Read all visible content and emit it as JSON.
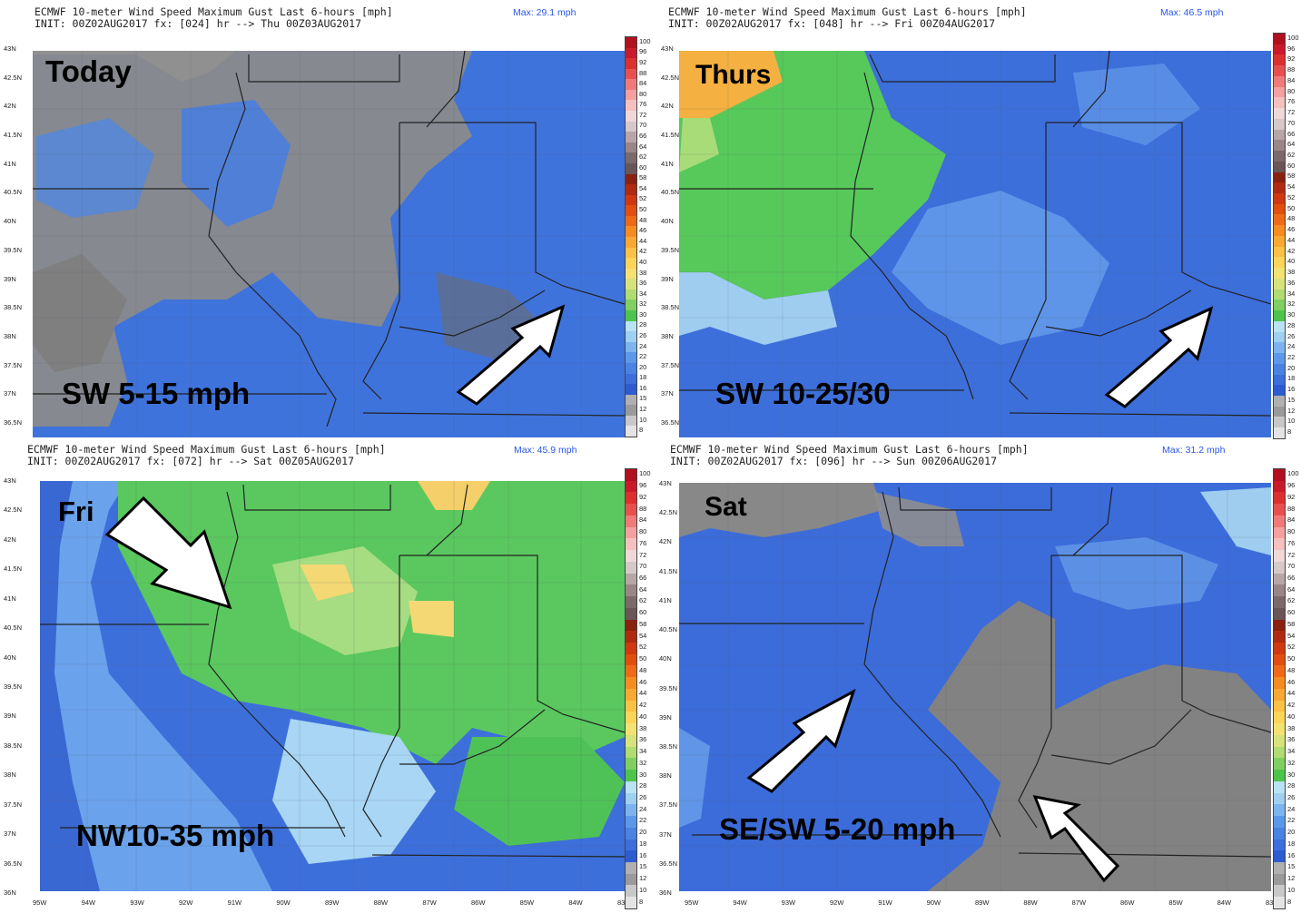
{
  "panels": [
    {
      "title": "ECMWF 10-meter Wind Speed Maximum Gust Last 6-hours [mph]",
      "init": "INIT: 00Z02AUG2017 fx: [024] hr --> Thu 00Z03AUG2017",
      "max": "Max: 29.1 mph",
      "day": "Today",
      "caption": "SW 5-15 mph",
      "theme": "gray",
      "arrow": "northeast"
    },
    {
      "title": "ECMWF 10-meter Wind Speed Maximum Gust Last 6-hours [mph]",
      "init": "INIT: 00Z02AUG2017 fx: [048] hr --> Fri 00Z04AUG2017",
      "max": "Max: 46.5 mph",
      "day": "Thurs",
      "caption": "SW 10-25/30",
      "theme": "blue-green",
      "arrow": "northeast"
    },
    {
      "title": "ECMWF 10-meter Wind Speed Maximum Gust Last 6-hours [mph]",
      "init": "INIT: 00Z02AUG2017 fx: [072] hr --> Sat 00Z05AUG2017",
      "max": "Max: 45.9 mph",
      "day": "Fri",
      "caption": "NW10-35 mph",
      "theme": "green",
      "arrow": "southeast"
    },
    {
      "title": "ECMWF 10-meter Wind Speed Maximum Gust Last 6-hours [mph]",
      "init": "INIT: 00Z02AUG2017 fx: [096] hr --> Sun 00Z06AUG2017",
      "max": "Max: 31.2 mph",
      "day": "Sat",
      "caption": "SE/SW 5-20 mph",
      "theme": "blue-gray",
      "arrow": "northeast+northwest"
    }
  ],
  "lat_labels": [
    "43N",
    "42.5N",
    "42N",
    "41.5N",
    "41N",
    "40.5N",
    "40N",
    "39.5N",
    "39N",
    "38.5N",
    "38N",
    "37.5N",
    "37N",
    "36.5N"
  ],
  "lat_labels_bottom": [
    "43N",
    "42.5N",
    "42N",
    "41.5N",
    "41N",
    "40.5N",
    "40N",
    "39.5N",
    "39N",
    "38.5N",
    "38N",
    "37.5N",
    "37N",
    "36.5N",
    "36N"
  ],
  "lon_labels": [
    "95W",
    "94W",
    "93W",
    "92W",
    "91W",
    "90W",
    "89W",
    "88W",
    "87W",
    "86W",
    "85W",
    "84W",
    "83"
  ],
  "colorbar_ticks": [
    "100",
    "96",
    "92",
    "88",
    "84",
    "80",
    "76",
    "72",
    "70",
    "66",
    "64",
    "62",
    "60",
    "58",
    "54",
    "52",
    "50",
    "48",
    "46",
    "44",
    "42",
    "40",
    "38",
    "36",
    "34",
    "32",
    "30",
    "28",
    "26",
    "24",
    "22",
    "20",
    "18",
    "16",
    "15",
    "12",
    "10",
    "8"
  ],
  "colorbar_colors": [
    "#b01020",
    "#c81a2a",
    "#dc3030",
    "#e85050",
    "#f07a7a",
    "#f4a0a0",
    "#f6c0c0",
    "#f0d8d8",
    "#d6c8c8",
    "#b8a6a6",
    "#9a8686",
    "#7c6a6a",
    "#6a5656",
    "#8a2010",
    "#b02a10",
    "#cf3810",
    "#e24e10",
    "#ef6a18",
    "#f58c22",
    "#f9a834",
    "#fbc046",
    "#fcd45a",
    "#f3e272",
    "#d8e27a",
    "#b0dc72",
    "#7fd060",
    "#4ec44c",
    "#b9e2f3",
    "#9fd0f0",
    "#7db4ee",
    "#5c98ea",
    "#4a82e2",
    "#3d6edb",
    "#2f5bd0",
    "#b0b0b0",
    "#9a9a9a",
    "#c8c8c8",
    "#e4e4e4"
  ]
}
